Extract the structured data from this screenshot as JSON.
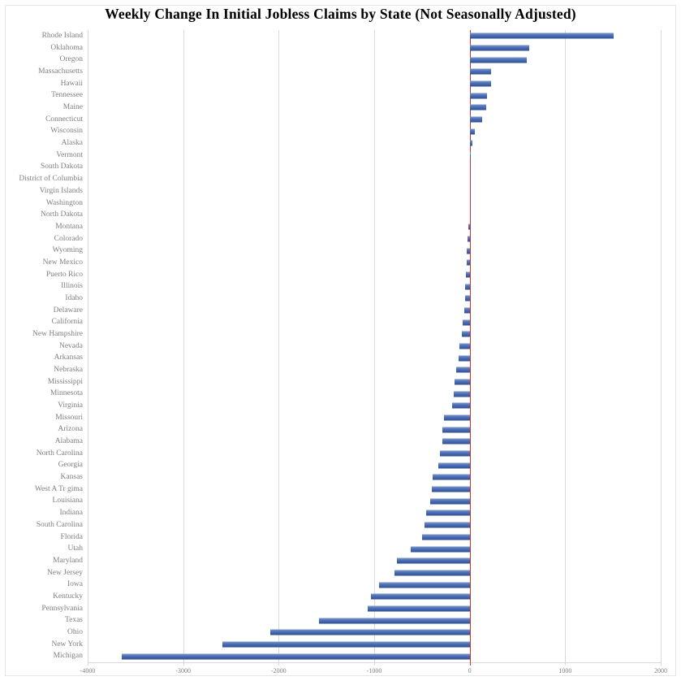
{
  "title": "Weekly Change In Initial Jobless Claims by State (Not Seasonally Adjusted)",
  "colors": {
    "bar_fill": "#4472c4",
    "bar_edge_dark": "#2f4c88",
    "zero_line": "#c0362c",
    "gridline": "#d9d9d9",
    "label_text": "#7f7f7f",
    "title_text": "#000000",
    "background": "#ffffff",
    "outer_border": "#e6e6e6"
  },
  "chart_data": {
    "type": "bar",
    "orientation": "horizontal",
    "title": "Weekly Change In Initial Jobless Claims by State (Not Seasonally Adjusted)",
    "xlabel": "",
    "ylabel": "",
    "xlim": [
      -4000,
      2000
    ],
    "grid": true,
    "legend": false,
    "x_ticks": [
      -4000,
      -3000,
      -2000,
      -1000,
      0,
      1000,
      2000
    ],
    "x_tick_labels": [
      "-4000",
      "-3000",
      "-2000",
      "-1000",
      "0",
      "1000",
      "2000"
    ],
    "categories": [
      "Rhode Island",
      "Oklahoma",
      "Oregon",
      "Massachusetts",
      "Hawaii",
      "Tennessee",
      "Maine",
      "Connecticut",
      "Wisconsin",
      "Alaska",
      "Vermont",
      "South Dakota",
      "District of Columbia",
      "Virgin Islands",
      "Washington",
      "North Dakota",
      "Montana",
      "Colorado",
      "Wyoming",
      "New Mexico",
      "Puerto Rico",
      "Illinois",
      "Idaho",
      "Delaware",
      "California",
      "New Hampshire",
      "Nevada",
      "Arkansas",
      "Nebraska",
      "Mississippi",
      "Minnesota",
      "Virginia",
      "Missouri",
      "Arizona",
      "Alabama",
      "North Carolina",
      "Georgia",
      "Kansas",
      "West A Tr gima",
      "Louisiana",
      "Indiana",
      "South Carolina",
      "Florida",
      "Utah",
      "Maryland",
      "New Jersey",
      "Iowa",
      "Kentucky",
      "Pennsylvania",
      "Texas",
      "Ohio",
      "New York",
      "Michigan"
    ],
    "values": [
      1510,
      620,
      595,
      225,
      220,
      185,
      170,
      130,
      55,
      25,
      10,
      0,
      0,
      0,
      0,
      0,
      -10,
      -25,
      -30,
      -35,
      -40,
      -45,
      -50,
      -60,
      -70,
      -85,
      -110,
      -120,
      -145,
      -160,
      -165,
      -185,
      -270,
      -290,
      -290,
      -315,
      -325,
      -385,
      -400,
      -410,
      -460,
      -470,
      -500,
      -620,
      -765,
      -790,
      -950,
      -1030,
      -1065,
      -1580,
      -2085,
      -2585,
      -3640
    ]
  }
}
